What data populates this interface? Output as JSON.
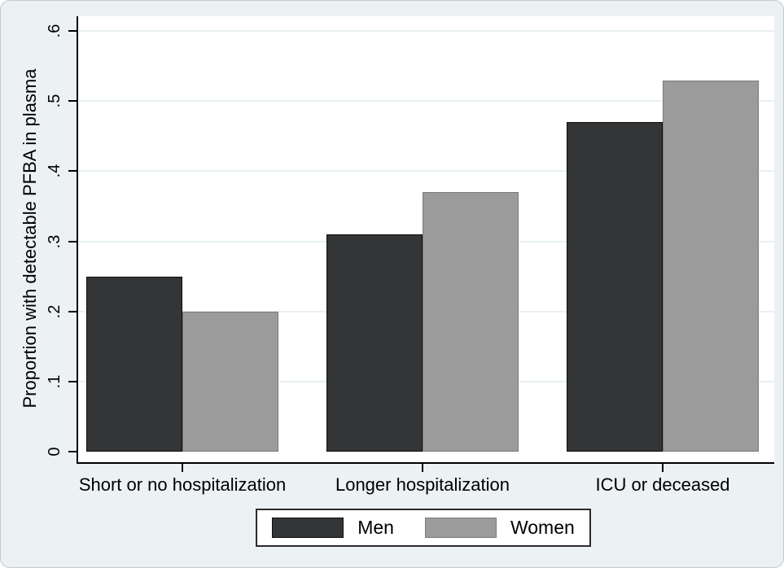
{
  "figure": {
    "background_color": "#ecf1f3",
    "plot_background_color": "#ffffff",
    "gridline_color": "#e9f0f2",
    "axis_color": "#000000",
    "text_color": "#000000"
  },
  "chart_data": {
    "type": "bar",
    "title": "",
    "xlabel": "",
    "ylabel": "Proportion with detectable PFBA in plasma",
    "categories": [
      "Short or no hospitalization",
      "Longer hospitalization",
      "ICU or deceased"
    ],
    "series": [
      {
        "name": "Men",
        "color": "#333537",
        "border_color": "#0d0d0d",
        "values": [
          0.25,
          0.31,
          0.47
        ]
      },
      {
        "name": "Women",
        "color": "#9b9b9b",
        "border_color": "#7a7a7a",
        "values": [
          0.2,
          0.37,
          0.53
        ]
      }
    ],
    "ylim": [
      0,
      0.6
    ],
    "yticks": [
      {
        "value": 0.0,
        "label": "0"
      },
      {
        "value": 0.1,
        "label": ".1"
      },
      {
        "value": 0.2,
        "label": ".2"
      },
      {
        "value": 0.3,
        "label": ".3"
      },
      {
        "value": 0.4,
        "label": ".4"
      },
      {
        "value": 0.5,
        "label": ".5"
      },
      {
        "value": 0.6,
        "label": ".6"
      }
    ],
    "grid": true,
    "grid_values": [
      0.1,
      0.2,
      0.3,
      0.4,
      0.5,
      0.6
    ],
    "legend_position": "bottom"
  },
  "legend": {
    "items": [
      {
        "label": "Men",
        "color": "#333537",
        "border_color": "#0d0d0d"
      },
      {
        "label": "Women",
        "color": "#9b9b9b",
        "border_color": "#7a7a7a"
      }
    ]
  }
}
